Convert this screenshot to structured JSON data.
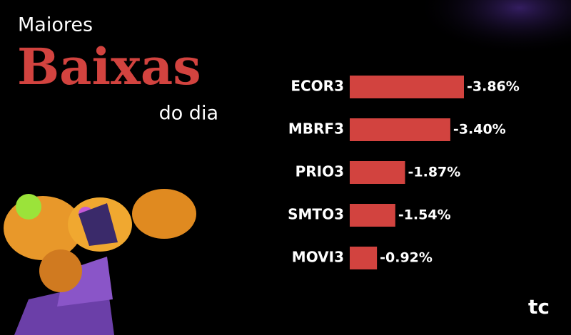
{
  "chart_data": {
    "type": "bar",
    "orientation": "horizontal",
    "title_top": "Maiores",
    "title_main": "Baixas",
    "title_bottom": "do dia",
    "categories": [
      "ECOR3",
      "MBRF3",
      "PRIO3",
      "SMTO3",
      "MOVI3"
    ],
    "values": [
      -3.86,
      -3.4,
      -1.87,
      -1.54,
      -0.92
    ],
    "value_labels": [
      "-3.86%",
      "-3.40%",
      "-1.87%",
      "-1.54%",
      "-0.92%"
    ],
    "color": "#d2433f",
    "logo": "tc"
  }
}
